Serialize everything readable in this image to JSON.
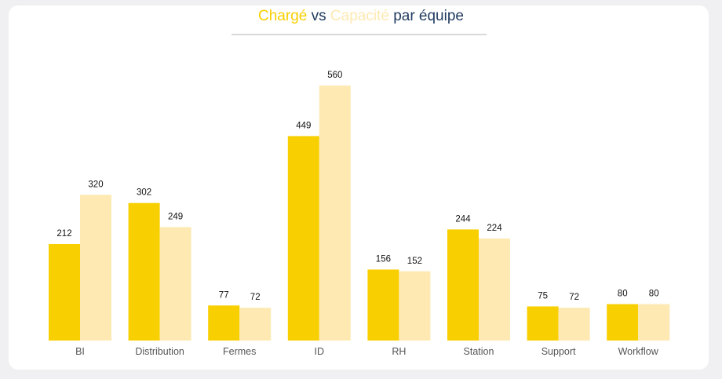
{
  "colors": {
    "charge": "#f8cf00",
    "capacite": "#fde9b1",
    "title_text": "#1f3a5f"
  },
  "chart_data": {
    "type": "bar",
    "title": {
      "word_charge": "Chargé",
      "word_vs": "vs",
      "word_capacite": "Capacité",
      "suffix": "par équipe"
    },
    "categories": [
      "BI",
      "Distribution",
      "Fermes",
      "ID",
      "RH",
      "Station",
      "Support",
      "Workflow"
    ],
    "series": [
      {
        "name": "Chargé",
        "color": "#f8cf00",
        "values": [
          212,
          302,
          77,
          449,
          156,
          244,
          75,
          80
        ]
      },
      {
        "name": "Capacité",
        "color": "#fde9b1",
        "values": [
          320,
          249,
          72,
          560,
          152,
          224,
          72,
          80
        ]
      }
    ],
    "ylim": [
      0,
      560
    ],
    "grid": false,
    "legend": "none"
  }
}
